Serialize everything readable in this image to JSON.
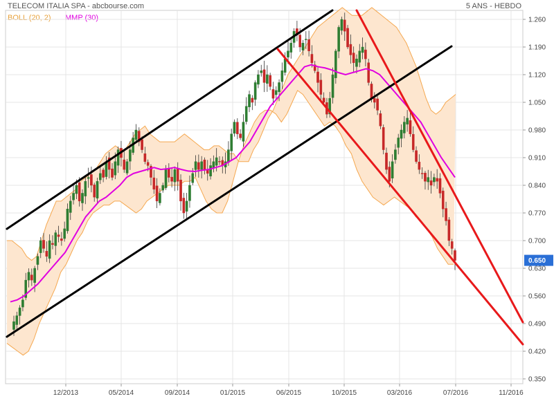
{
  "header": {
    "title": "TELECOM ITALIA SPA - abcbourse.com",
    "period": "5 ANS - HEBDO"
  },
  "legend": {
    "boll": "BOLL (20, 2)",
    "mmp": "MMP (30)"
  },
  "colors": {
    "up_candle": "#2e7d32",
    "down_candle": "#c62828",
    "boll_band": "#f5a850",
    "boll_fill": "#fde6cf",
    "mmp": "#e000e0",
    "channel": "#000000",
    "trend": "#e8191b",
    "last_badge": "#2a6fd6",
    "grid": "#e4e4e4"
  },
  "chart_data": {
    "type": "line",
    "y_ticks": [
      "1.260",
      "1.190",
      "1.120",
      "1.050",
      "0.980",
      "0.910",
      "0.840",
      "0.770",
      "0.700",
      "0.630",
      "0.560",
      "0.490",
      "0.420",
      "0.350"
    ],
    "x_ticks": [
      "12/2013",
      "05/2014",
      "09/2014",
      "01/2015",
      "06/2015",
      "10/2015",
      "03/2016",
      "07/2016",
      "11/2016"
    ],
    "ylim": [
      0.35,
      1.28
    ],
    "last_price": "0.650",
    "close_series": [
      0.495,
      0.51,
      0.53,
      0.55,
      0.6,
      0.62,
      0.6,
      0.63,
      0.66,
      0.7,
      0.68,
      0.66,
      0.7,
      0.69,
      0.72,
      0.71,
      0.7,
      0.73,
      0.78,
      0.8,
      0.82,
      0.84,
      0.8,
      0.82,
      0.85,
      0.86,
      0.84,
      0.81,
      0.85,
      0.87,
      0.86,
      0.9,
      0.88,
      0.86,
      0.9,
      0.93,
      0.91,
      0.88,
      0.9,
      0.93,
      0.96,
      0.98,
      0.95,
      0.93,
      0.9,
      0.89,
      0.86,
      0.83,
      0.8,
      0.82,
      0.84,
      0.88,
      0.86,
      0.85,
      0.88,
      0.85,
      0.8,
      0.77,
      0.8,
      0.84,
      0.87,
      0.9,
      0.88,
      0.9,
      0.88,
      0.87,
      0.89,
      0.9,
      0.91,
      0.9,
      0.89,
      0.9,
      0.93,
      0.97,
      1.0,
      0.97,
      0.96,
      1.0,
      1.04,
      1.07,
      1.05,
      1.1,
      1.12,
      1.13,
      1.1,
      1.12,
      1.09,
      1.06,
      1.08,
      1.1,
      1.13,
      1.16,
      1.18,
      1.2,
      1.23,
      1.22,
      1.19,
      1.2,
      1.21,
      1.18,
      1.15,
      1.13,
      1.1,
      1.07,
      1.05,
      1.02,
      1.06,
      1.12,
      1.18,
      1.24,
      1.26,
      1.23,
      1.19,
      1.17,
      1.15,
      1.16,
      1.18,
      1.19,
      1.16,
      1.1,
      1.06,
      1.05,
      1.03,
      0.99,
      0.93,
      0.88,
      0.85,
      0.9,
      0.93,
      0.96,
      0.98,
      1.0,
      1.01,
      0.97,
      0.93,
      0.9,
      0.88,
      0.87,
      0.85,
      0.86,
      0.84,
      0.86,
      0.85,
      0.82,
      0.78,
      0.75,
      0.7,
      0.68,
      0.65
    ],
    "boll_upper": [
      0.7,
      0.7,
      0.69,
      0.68,
      0.66,
      0.65,
      0.66,
      0.7,
      0.74,
      0.77,
      0.8,
      0.8,
      0.81,
      0.82,
      0.83,
      0.85,
      0.86,
      0.87,
      0.88,
      0.9,
      0.92,
      0.93,
      0.94,
      0.93,
      0.93,
      0.95,
      0.97,
      0.98,
      0.99,
      0.97,
      0.96,
      0.95,
      0.95,
      0.95,
      0.95,
      0.96,
      0.97,
      0.96,
      0.95,
      0.94,
      0.93,
      0.93,
      0.94,
      0.94,
      0.93,
      0.92,
      0.92,
      0.9,
      0.9,
      0.9,
      0.93,
      0.95,
      0.98,
      1.01,
      1.03,
      1.06,
      1.09,
      1.12,
      1.14,
      1.16,
      1.18,
      1.2,
      1.22,
      1.24,
      1.25,
      1.26,
      1.27,
      1.28,
      1.29,
      1.28,
      1.27,
      1.27,
      1.27,
      1.28,
      1.29,
      1.28,
      1.27,
      1.26,
      1.25,
      1.24,
      1.22,
      1.2,
      1.17,
      1.14,
      1.1,
      1.06,
      1.03,
      1.02,
      1.03,
      1.05,
      1.06,
      1.07
    ],
    "boll_lower": [
      0.44,
      0.43,
      0.42,
      0.41,
      0.42,
      0.45,
      0.49,
      0.52,
      0.55,
      0.58,
      0.62,
      0.64,
      0.67,
      0.7,
      0.72,
      0.75,
      0.77,
      0.78,
      0.79,
      0.79,
      0.8,
      0.8,
      0.79,
      0.78,
      0.77,
      0.78,
      0.8,
      0.81,
      0.82,
      0.83,
      0.84,
      0.84,
      0.84,
      0.85,
      0.85,
      0.86,
      0.83,
      0.8,
      0.78,
      0.77,
      0.77,
      0.8,
      0.85,
      0.9,
      0.94,
      0.97,
      1.0,
      1.02,
      1.03,
      1.03,
      1.02,
      1.0,
      1.02,
      1.05,
      1.08,
      1.07,
      1.05,
      1.03,
      1.01,
      0.99,
      1.0,
      0.99,
      0.97,
      0.94,
      0.92,
      0.88,
      0.85,
      0.83,
      0.81,
      0.8,
      0.79,
      0.8,
      0.81,
      0.8,
      0.79,
      0.78,
      0.76,
      0.75,
      0.73,
      0.71,
      0.68,
      0.66,
      0.64,
      0.64
    ],
    "mmp_series": [
      0.545,
      0.55,
      0.56,
      0.575,
      0.59,
      0.61,
      0.63,
      0.65,
      0.67,
      0.7,
      0.73,
      0.76,
      0.78,
      0.8,
      0.81,
      0.825,
      0.84,
      0.86,
      0.87,
      0.875,
      0.88,
      0.885,
      0.88,
      0.882,
      0.885,
      0.88,
      0.876,
      0.875,
      0.878,
      0.88,
      0.885,
      0.89,
      0.9,
      0.91,
      0.93,
      0.95,
      0.98,
      1.01,
      1.04,
      1.06,
      1.08,
      1.1,
      1.12,
      1.14,
      1.145,
      1.14,
      1.137,
      1.132,
      1.125,
      1.12,
      1.125,
      1.13,
      1.135,
      1.13,
      1.12,
      1.1,
      1.08,
      1.06,
      1.04,
      1.02,
      1.0,
      0.97,
      0.94,
      0.91,
      0.885,
      0.86
    ]
  }
}
